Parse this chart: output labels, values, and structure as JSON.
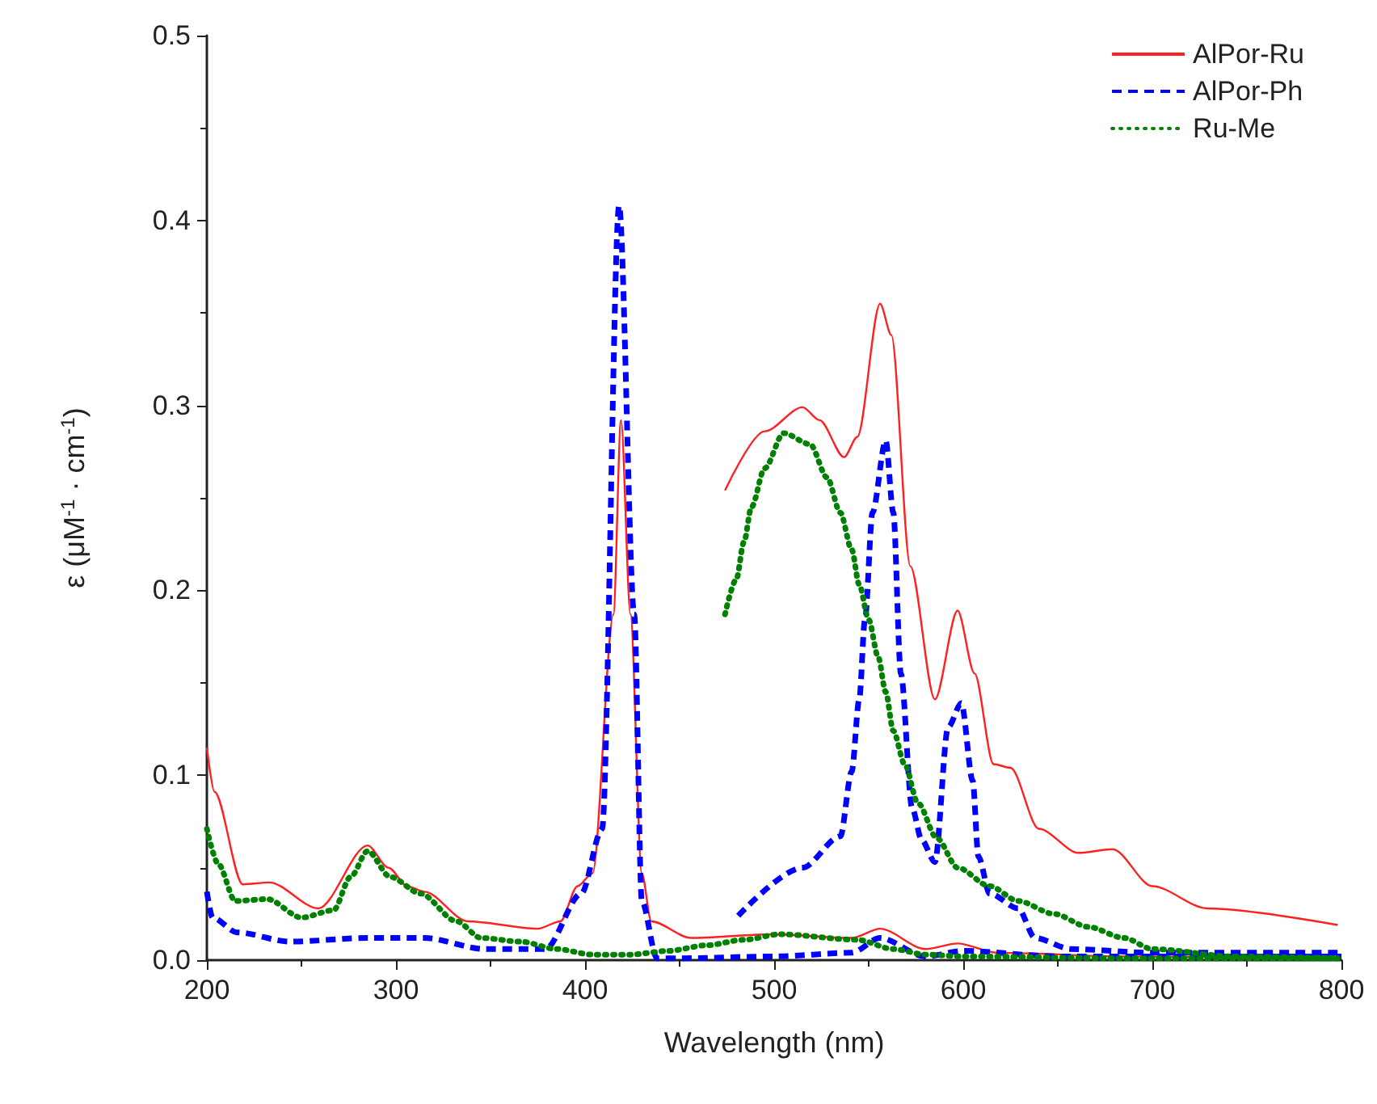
{
  "chart_data": {
    "type": "line",
    "xlabel": "Wavelength (nm)",
    "ylabel": "ε (μM$^{-1}$ · cm$^{-1}$)",
    "xlim": [
      200,
      800
    ],
    "xticks": [
      200,
      300,
      400,
      500,
      600,
      700,
      800
    ],
    "ylim": [
      0,
      0.5
    ],
    "yticks": [
      {
        "value": 0,
        "label": "0.0"
      },
      0.1,
      0.2,
      0.3,
      0.4,
      0.5
    ],
    "grid": false,
    "legend": "top right",
    "marker": "none",
    "series": [
      {
        "name": "AlPor-Ru",
        "color": "#ff2020",
        "line_style": "solid",
        "x": [
          200,
          204,
          219,
          233,
          259,
          285,
          296,
          306,
          315,
          338,
          375,
          387,
          396,
          404,
          415,
          419,
          424,
          430,
          435,
          456,
          499,
          541,
          556,
          580,
          597,
          618,
          686,
          798
        ],
        "values": [
          0.115,
          0.091,
          0.041,
          0.042,
          0.028,
          0.062,
          0.05,
          0.04,
          0.037,
          0.021,
          0.017,
          0.021,
          0.04,
          0.047,
          0.187,
          0.292,
          0.187,
          0.047,
          0.021,
          0.012,
          0.014,
          0.012,
          0.017,
          0.006,
          0.009,
          0.004,
          0.002,
          0.001
        ]
      },
      {
        "name": "AlPor-Ph",
        "color": "#0000ff",
        "line_style": "dashed",
        "x": [
          200,
          203,
          216,
          244,
          285,
          315,
          347,
          379,
          398,
          409,
          418,
          426,
          430,
          438,
          450,
          500,
          541,
          556,
          580,
          600,
          650,
          800
        ],
        "values": [
          0.037,
          0.023,
          0.015,
          0.01,
          0.012,
          0.012,
          0.006,
          0.006,
          0.036,
          0.071,
          0.408,
          0.187,
          0.032,
          0.001,
          0.001,
          0.002,
          0.004,
          0.012,
          0.002,
          0.005,
          0.002,
          0.002
        ]
      },
      {
        "name": "Ru-Me",
        "color": "#008000",
        "line_style": "dotted",
        "x": [
          200,
          206,
          215,
          232,
          250,
          267,
          276,
          285,
          297,
          313,
          332,
          345,
          366,
          385,
          404,
          424,
          444,
          464,
          484,
          503,
          544,
          563,
          580,
          601,
          686,
          798
        ],
        "values": [
          0.071,
          0.052,
          0.032,
          0.033,
          0.023,
          0.027,
          0.045,
          0.059,
          0.045,
          0.036,
          0.021,
          0.012,
          0.01,
          0.006,
          0.003,
          0.003,
          0.005,
          0.008,
          0.011,
          0.014,
          0.011,
          0.006,
          0.003,
          0.002,
          0.001,
          0.001
        ]
      },
      {
        "color": "#ff2020",
        "line_style": "solid",
        "x": [
          474,
          495,
          515,
          524,
          537,
          544,
          556,
          562,
          572,
          585,
          597,
          606,
          616,
          625,
          640,
          661,
          679,
          700,
          729,
          798
        ],
        "values": [
          0.254,
          0.286,
          0.299,
          0.292,
          0.272,
          0.283,
          0.355,
          0.338,
          0.213,
          0.141,
          0.189,
          0.155,
          0.106,
          0.104,
          0.071,
          0.058,
          0.06,
          0.04,
          0.028,
          0.019
        ]
      },
      {
        "color": "#0000ff",
        "line_style": "dashed",
        "x": [
          481,
          515,
          535,
          541,
          545,
          548,
          552,
          559,
          563,
          567,
          573,
          578,
          585,
          592,
          599,
          605,
          608,
          614,
          629,
          638,
          657,
          700,
          798
        ],
        "values": [
          0.024,
          0.05,
          0.067,
          0.102,
          0.141,
          0.184,
          0.242,
          0.281,
          0.242,
          0.155,
          0.082,
          0.065,
          0.053,
          0.126,
          0.139,
          0.097,
          0.056,
          0.036,
          0.028,
          0.012,
          0.006,
          0.004,
          0.004
        ]
      },
      {
        "color": "#008000",
        "line_style": "dotted",
        "x": [
          474,
          480,
          484,
          488,
          495,
          505,
          519,
          528,
          535,
          541,
          545,
          550,
          555,
          559,
          563,
          569,
          576,
          586,
          597,
          614,
          629,
          648,
          666,
          685,
          700,
          743,
          798
        ],
        "values": [
          0.187,
          0.206,
          0.226,
          0.245,
          0.266,
          0.285,
          0.279,
          0.261,
          0.242,
          0.222,
          0.203,
          0.184,
          0.164,
          0.145,
          0.124,
          0.106,
          0.085,
          0.066,
          0.05,
          0.04,
          0.032,
          0.025,
          0.018,
          0.012,
          0.006,
          0.002,
          0.001
        ]
      }
    ]
  }
}
